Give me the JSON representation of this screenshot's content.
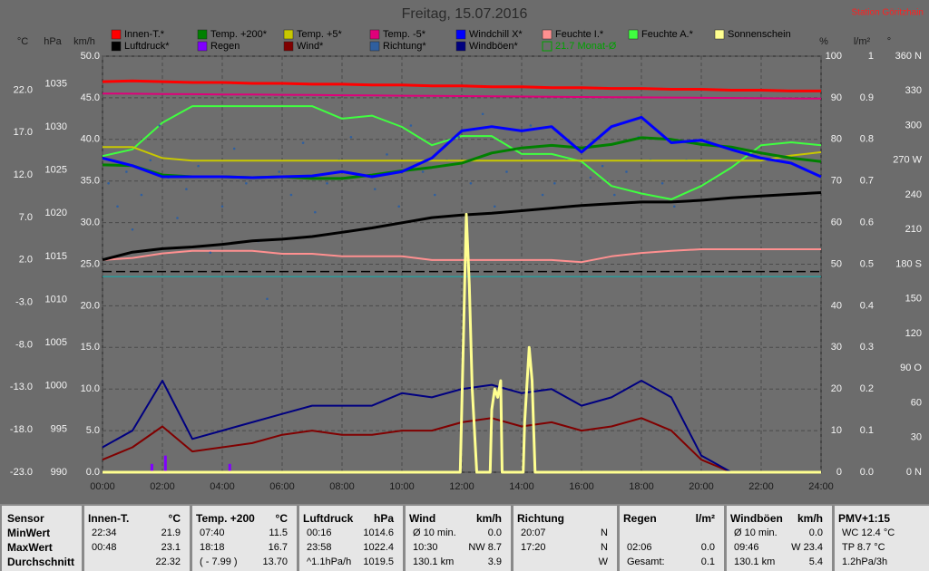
{
  "chart_data": {
    "type": "line",
    "title": "Freitag, 15.07.2016",
    "station": "Station Göritzhain",
    "monthly_avg_label": "21.7 Monat-Ø",
    "xlim": [
      0,
      24
    ],
    "xticks": [
      {
        "value": 0,
        "label": "00:00"
      },
      {
        "value": 2,
        "label": "02:00"
      },
      {
        "value": 4,
        "label": "04:00"
      },
      {
        "value": 6,
        "label": "06:00"
      },
      {
        "value": 8,
        "label": "08:00"
      },
      {
        "value": 10,
        "label": "10:00"
      },
      {
        "value": 12,
        "label": "12:00"
      },
      {
        "value": 14,
        "label": "14:00"
      },
      {
        "value": 16,
        "label": "16:00"
      },
      {
        "value": 18,
        "label": "18:00"
      },
      {
        "value": 20,
        "label": "20:00"
      },
      {
        "value": 22,
        "label": "22:00"
      },
      {
        "value": 24,
        "label": "24:00"
      }
    ],
    "x": [
      0,
      1,
      2,
      3,
      4,
      5,
      6,
      7,
      8,
      9,
      10,
      11,
      12,
      13,
      14,
      15,
      16,
      17,
      18,
      19,
      20,
      21,
      22,
      23,
      24
    ],
    "grid": true,
    "axes": [
      {
        "unit": "°C",
        "ylim": [
          -23,
          26
        ],
        "yticks": [
          {
            "value": -23,
            "label": "-23.0"
          },
          {
            "value": -18,
            "label": "-18.0"
          },
          {
            "value": -13,
            "label": "-13.0"
          },
          {
            "value": -8,
            "label": "-8.0"
          },
          {
            "value": -3,
            "label": "-3.0"
          },
          {
            "value": 2,
            "label": "2.0"
          },
          {
            "value": 7,
            "label": "7.0"
          },
          {
            "value": 12,
            "label": "12.0"
          },
          {
            "value": 17,
            "label": "17.0"
          },
          {
            "value": 22,
            "label": "22.0"
          }
        ]
      },
      {
        "unit": "hPa",
        "ylim": [
          990,
          1038.2
        ],
        "yticks": [
          990,
          995,
          1000,
          1005,
          1010,
          1015,
          1020,
          1025,
          1030,
          1035
        ]
      },
      {
        "unit": "km/h",
        "ylim": [
          0,
          50
        ],
        "yticks": [
          {
            "value": 0,
            "label": "0.0"
          },
          {
            "value": 5,
            "label": "5.0"
          },
          {
            "value": 10,
            "label": "10.0"
          },
          {
            "value": 15,
            "label": "15.0"
          },
          {
            "value": 20,
            "label": "20.0"
          },
          {
            "value": 25,
            "label": "25.0"
          },
          {
            "value": 30,
            "label": "30.0"
          },
          {
            "value": 35,
            "label": "35.0"
          },
          {
            "value": 40,
            "label": "40.0"
          },
          {
            "value": 45,
            "label": "45.0"
          },
          {
            "value": 50,
            "label": "50.0"
          }
        ]
      },
      {
        "unit": "%",
        "ylim": [
          0,
          100
        ],
        "yticks": [
          0,
          10,
          20,
          30,
          40,
          50,
          60,
          70,
          80,
          90,
          100
        ]
      },
      {
        "unit": "l/m²",
        "ylim": [
          0,
          1
        ],
        "yticks": [
          {
            "value": 0,
            "label": "0.0"
          },
          0.1,
          0.2,
          0.3,
          0.4,
          0.5,
          0.6,
          0.7,
          0.8,
          0.9,
          1
        ]
      },
      {
        "unit": "°",
        "ylim": [
          0,
          360
        ],
        "yticks": [
          {
            "value": 0,
            "label": "0 N"
          },
          30,
          60,
          {
            "value": 90,
            "label": "90 O"
          },
          120,
          150,
          {
            "value": 180,
            "label": "180 S"
          },
          210,
          240,
          {
            "value": 270,
            "label": "270 W"
          },
          300,
          330,
          {
            "value": 360,
            "label": "360 N"
          }
        ]
      }
    ],
    "reference_lines": [
      {
        "axis": "hPa",
        "value": 1013.25,
        "color": "#000000",
        "dashed": true
      },
      {
        "axis": "%",
        "value": 47,
        "color": "#2a9a9a",
        "dashed": false
      }
    ],
    "series": [
      {
        "name": "Innen-T.*",
        "color": "#ff0000",
        "axis": "°C",
        "style": "line",
        "width": 3,
        "values": [
          23.0,
          23.1,
          23.0,
          22.9,
          22.9,
          22.8,
          22.8,
          22.7,
          22.7,
          22.6,
          22.6,
          22.5,
          22.5,
          22.4,
          22.4,
          22.3,
          22.3,
          22.2,
          22.2,
          22.1,
          22.1,
          22.0,
          22.0,
          21.9,
          21.9
        ]
      },
      {
        "name": "Luftdruck*",
        "color": "#000000",
        "axis": "hPa",
        "style": "line",
        "width": 3,
        "values": [
          1014.6,
          1015.5,
          1015.9,
          1016.1,
          1016.4,
          1016.8,
          1017.0,
          1017.3,
          1017.8,
          1018.3,
          1018.9,
          1019.5,
          1019.8,
          1020.0,
          1020.3,
          1020.6,
          1020.9,
          1021.1,
          1021.3,
          1021.3,
          1021.5,
          1021.8,
          1022.0,
          1022.2,
          1022.4
        ]
      },
      {
        "name": "Temp. +200*",
        "color": "#008000",
        "axis": "°C",
        "style": "line",
        "width": 3,
        "values": [
          13.2,
          13.1,
          12.0,
          11.8,
          11.8,
          11.7,
          11.8,
          11.6,
          11.6,
          12.0,
          12.5,
          12.9,
          13.4,
          14.6,
          15.2,
          15.5,
          15.2,
          15.6,
          16.4,
          16.2,
          15.6,
          15.3,
          14.6,
          14.0,
          13.6
        ]
      },
      {
        "name": "Regen",
        "color": "#8000ff",
        "axis": "l/m²",
        "style": "bars",
        "x": [
          1.65,
          2.1,
          4.25
        ],
        "values": [
          0.02,
          0.04,
          0.02
        ]
      },
      {
        "name": "Temp. +5*",
        "color": "#c8c800",
        "axis": "°C",
        "style": "line",
        "width": 2,
        "values": [
          15.3,
          15.3,
          14.0,
          13.7,
          13.7,
          13.7,
          13.7,
          13.7,
          13.7,
          13.7,
          13.7,
          13.7,
          13.7,
          13.7,
          13.7,
          13.7,
          13.7,
          13.7,
          13.7,
          13.7,
          13.7,
          13.7,
          13.7,
          14.3,
          14.7
        ]
      },
      {
        "name": "Wind*",
        "color": "#800000",
        "axis": "km/h",
        "style": "line",
        "width": 2,
        "values": [
          1.5,
          3,
          5.5,
          2.5,
          3,
          3.5,
          4.5,
          5,
          4.5,
          4.5,
          5,
          5,
          6,
          6.5,
          5.5,
          6,
          5,
          5.5,
          6.5,
          5,
          1.5,
          0,
          0,
          0,
          0
        ]
      },
      {
        "name": "Temp. -5*",
        "color": "#e0007a",
        "axis": "°C",
        "style": "line",
        "width": 2,
        "values": [
          21.6,
          21.58,
          21.55,
          21.53,
          21.5,
          21.48,
          21.45,
          21.43,
          21.4,
          21.38,
          21.35,
          21.33,
          21.3,
          21.28,
          21.25,
          21.23,
          21.2,
          21.18,
          21.15,
          21.13,
          21.1,
          21.08,
          21.05,
          21.03,
          21.0
        ]
      },
      {
        "name": "Richtung*",
        "color": "#2f5f9f",
        "axis": "°",
        "style": "dots",
        "x": [
          0.2,
          0.5,
          0.8,
          1.0,
          1.3,
          1.6,
          1.9,
          2.2,
          2.5,
          2.8,
          3.2,
          3.6,
          4.0,
          4.4,
          4.8,
          5.2,
          5.5,
          5.9,
          6.3,
          6.7,
          7.1,
          7.5,
          7.9,
          8.3,
          8.7,
          9.1,
          9.5,
          9.9,
          10.3,
          10.7,
          11.1,
          11.5,
          11.9,
          12.3,
          12.7,
          13.1,
          13.5,
          13.9,
          14.3,
          14.7,
          15.1,
          15.5,
          15.9,
          16.3,
          16.7,
          17.1,
          17.5,
          17.9,
          18.3,
          18.7,
          19.1,
          19.5
        ],
        "values": [
          250,
          230,
          260,
          210,
          240,
          270,
          300,
          255,
          220,
          245,
          265,
          190,
          230,
          280,
          250,
          200,
          150,
          260,
          240,
          285,
          225,
          250,
          270,
          290,
          210,
          245,
          275,
          230,
          300,
          260,
          240,
          270,
          290,
          250,
          310,
          230,
          260,
          280,
          300,
          240,
          250,
          270,
          280,
          255,
          265,
          240,
          260,
          290,
          270,
          250,
          230,
          270
        ]
      },
      {
        "name": "Windchill X*",
        "color": "#0000ff",
        "axis": "°C",
        "style": "line",
        "width": 3,
        "values": [
          14.0,
          13.1,
          11.8,
          11.8,
          11.8,
          11.7,
          11.8,
          11.9,
          12.4,
          11.8,
          12.4,
          14.0,
          17.2,
          17.7,
          17.2,
          17.7,
          14.7,
          17.7,
          18.8,
          15.8,
          16.1,
          15.0,
          14.0,
          13.4,
          11.8
        ]
      },
      {
        "name": "Windböen*",
        "color": "#000080",
        "axis": "km/h",
        "style": "line",
        "width": 2,
        "values": [
          3,
          5,
          11,
          4,
          5,
          6,
          7,
          8,
          8,
          8,
          9.5,
          9,
          10,
          10.5,
          9.5,
          10,
          8,
          9,
          11,
          9,
          2,
          0,
          0,
          0,
          0
        ]
      },
      {
        "name": "Feuchte I.*",
        "color": "#ff9090",
        "axis": "%",
        "style": "line",
        "width": 2,
        "values": [
          51,
          51.5,
          52.6,
          53.2,
          53.2,
          53.2,
          52.5,
          52.5,
          51.9,
          51.9,
          51.9,
          51,
          51,
          51,
          51,
          51,
          50.5,
          51.9,
          52.7,
          53.2,
          53.6,
          53.6,
          53.6,
          53.6,
          53.6
        ]
      },
      {
        "name": "Feuchte A.*",
        "color": "#40ff40",
        "axis": "%",
        "style": "line",
        "width": 2,
        "values": [
          76,
          77.6,
          84,
          88,
          88,
          88,
          88,
          88,
          85,
          85.7,
          83,
          78.6,
          80.8,
          80.8,
          76.5,
          76.5,
          74.7,
          68.8,
          67,
          65.6,
          68.8,
          73.2,
          78.6,
          79.3,
          78.6
        ]
      },
      {
        "name": "Sonnenschein",
        "color": "#ffff90",
        "axis": "%",
        "style": "line",
        "width": 3,
        "x": [
          0,
          11.95,
          12.05,
          12.15,
          12.25,
          12.35,
          12.5,
          12.55,
          12.95,
          13.0,
          13.1,
          13.2,
          13.3,
          13.35,
          14.05,
          14.1,
          14.25,
          14.35,
          14.45,
          14.5,
          24
        ],
        "values": [
          0,
          0,
          30,
          62,
          45,
          20,
          0,
          0,
          0,
          15,
          20,
          18,
          22,
          0,
          0,
          12,
          30,
          22,
          0,
          0,
          0
        ]
      }
    ]
  },
  "stats": {
    "row_labels": [
      "Sensor",
      "MinWert",
      "MaxWert",
      "Durchschnitt"
    ],
    "sections": [
      {
        "header": [
          "Innen-T.",
          "°C"
        ],
        "rows": [
          [
            "22:34",
            "21.9"
          ],
          [
            "00:48",
            "23.1"
          ],
          [
            null,
            "22.32"
          ]
        ]
      },
      {
        "header": [
          "Temp. +200",
          "°C"
        ],
        "rows": [
          [
            "07:40",
            "11.5"
          ],
          [
            "18:18",
            "16.7"
          ],
          [
            "( - 7.99 )",
            "13.70"
          ]
        ]
      },
      {
        "header": [
          "Luftdruck",
          "hPa"
        ],
        "rows": [
          [
            "00:16",
            "1014.6"
          ],
          [
            "23:58",
            "1022.4"
          ],
          [
            "^1.1hPa/h",
            "1019.5"
          ]
        ]
      },
      {
        "header": [
          "Wind",
          "km/h"
        ],
        "rows": [
          [
            "Ø 10 min.",
            "0.0"
          ],
          [
            "10:30",
            "NW 8.7"
          ],
          [
            "130.1 km",
            "3.9"
          ]
        ]
      },
      {
        "header": [
          "Richtung",
          null
        ],
        "rows": [
          [
            "20:07",
            "N"
          ],
          [
            "17:20",
            "N"
          ],
          [
            null,
            "W"
          ]
        ]
      },
      {
        "header": [
          "Regen",
          "l/m²"
        ],
        "rows": [
          [
            null,
            null
          ],
          [
            "02:06",
            "0.0"
          ],
          [
            "Gesamt:",
            "0.1"
          ]
        ]
      },
      {
        "header": [
          "Windböen",
          "km/h"
        ],
        "rows": [
          [
            "Ø 10 min.",
            "0.0"
          ],
          [
            "09:46",
            "W 23.4"
          ],
          [
            "130.1 km",
            "5.4"
          ]
        ]
      },
      {
        "header": [
          "PMV+1:15",
          null
        ],
        "rows": [
          [
            "WC 12.4 °C",
            null
          ],
          [
            "TP 8.7 °C",
            null
          ],
          [
            "1.2hPa/3h",
            null
          ]
        ]
      }
    ]
  }
}
